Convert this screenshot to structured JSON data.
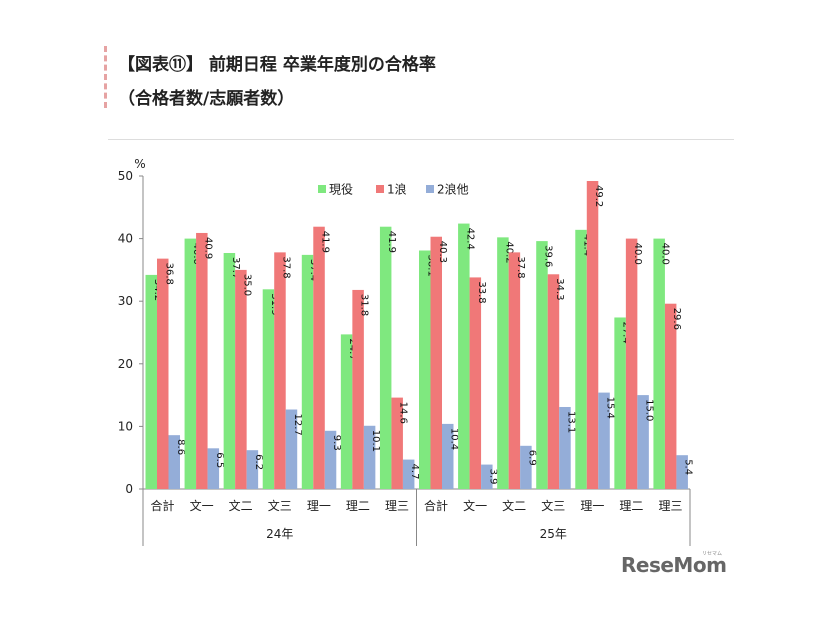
{
  "header": {
    "title_line1": "【図表⑪】 前期日程 卒業年度別の合格率",
    "title_line2": "（合格者数/志願者数）"
  },
  "logo": {
    "text": "ReseMom",
    "kana": "リセマム"
  },
  "chart_data": {
    "type": "bar",
    "ylabel": "%",
    "ylim": [
      0,
      50
    ],
    "yticks": [
      0,
      10,
      20,
      30,
      40,
      50
    ],
    "grid": false,
    "legend_position": "top-center",
    "groups": [
      {
        "label": "24年",
        "categories": [
          "合計",
          "文一",
          "文二",
          "文三",
          "理一",
          "理二",
          "理三"
        ]
      },
      {
        "label": "25年",
        "categories": [
          "合計",
          "文一",
          "文二",
          "文三",
          "理一",
          "理二",
          "理三"
        ]
      }
    ],
    "series": [
      {
        "name": "現役",
        "color": "#7fe87f",
        "values": [
          34.2,
          40.0,
          37.7,
          31.9,
          37.4,
          24.7,
          41.9,
          38.1,
          42.4,
          40.2,
          39.6,
          41.4,
          27.4,
          40.0
        ]
      },
      {
        "name": "1浪",
        "color": "#f07878",
        "values": [
          36.8,
          40.9,
          35.0,
          37.8,
          41.9,
          31.8,
          14.6,
          40.3,
          33.8,
          37.8,
          34.3,
          49.2,
          40.0,
          29.6
        ]
      },
      {
        "name": "2浪他",
        "color": "#94add8",
        "values": [
          8.6,
          6.5,
          6.2,
          12.7,
          9.3,
          10.1,
          4.7,
          10.4,
          3.9,
          6.9,
          13.1,
          15.4,
          15.0,
          5.4
        ]
      }
    ]
  }
}
